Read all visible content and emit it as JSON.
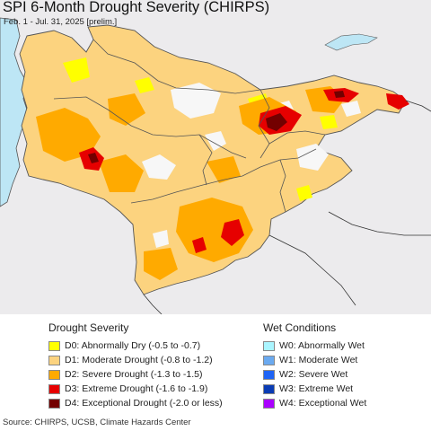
{
  "map": {
    "title": "SPI 6-Month Drought Severity (CHIRPS)",
    "period": "Feb. 1 - Jul. 31, 2025 [prelim.]",
    "colors": {
      "background_land": "#ecebed",
      "water": "#bde6f5",
      "border": "#555555"
    }
  },
  "legend": {
    "drought": {
      "heading": "Drought Severity",
      "items": [
        {
          "label": "D0: Abnormally Dry (-0.5 to -0.7)",
          "color": "#ffff00"
        },
        {
          "label": "D1: Moderate Drought (-0.8 to -1.2)",
          "color": "#fcd37f"
        },
        {
          "label": "D2: Severe Drought (-1.3 to -1.5)",
          "color": "#ffaa00"
        },
        {
          "label": "D3: Extreme Drought (-1.6 to -1.9)",
          "color": "#e60000"
        },
        {
          "label": "D4: Exceptional Drought (-2.0 or less)",
          "color": "#730000"
        }
      ]
    },
    "wet": {
      "heading": "Wet Conditions",
      "items": [
        {
          "label": "W0: Abnormally Wet",
          "color": "#aaf5ff"
        },
        {
          "label": "W1: Moderate Wet",
          "color": "#6baaf0"
        },
        {
          "label": "W2: Severe Wet",
          "color": "#1e64f5"
        },
        {
          "label": "W3: Extreme Wet",
          "color": "#0a3cb4"
        },
        {
          "label": "W4: Exceptional Wet",
          "color": "#aa00ff"
        }
      ]
    }
  },
  "source": "Source: CHIRPS, UCSB, Climate Hazards Center"
}
